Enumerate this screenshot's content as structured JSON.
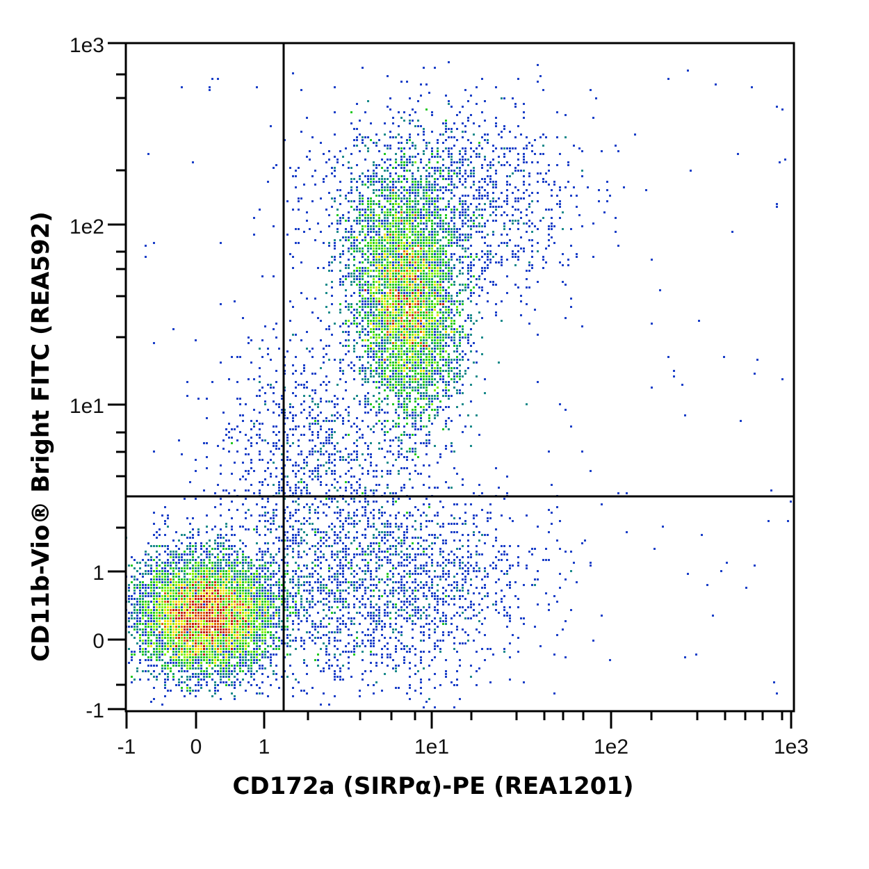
{
  "chart_data": {
    "type": "scatter",
    "subtype": "flow-cytometry-density-dot-plot",
    "title": "",
    "xlabel": "CD172a (SIRPα)-PE (REA1201)",
    "ylabel": "CD11b-Vio® Bright FITC (REA592)",
    "x_scale": "biexponential",
    "y_scale": "biexponential",
    "xlim": [
      -1,
      1000
    ],
    "ylim": [
      -1,
      1000
    ],
    "x_ticks": [
      "-1",
      "0",
      "1",
      "1e1",
      "1e2",
      "1e3"
    ],
    "y_ticks": [
      "-1",
      "0",
      "1",
      "1e1",
      "1e2",
      "1e3"
    ],
    "grid": false,
    "legend": null,
    "quadrant_gates": {
      "x_threshold": 1.3,
      "y_threshold": 2.8
    },
    "populations": [
      {
        "name": "double-negative cluster",
        "center_x": 0.3,
        "center_y": 0.3,
        "quadrant": "lower-left",
        "density": "high"
      },
      {
        "name": "CD11b+ CD172a+ cluster",
        "center_x": 7,
        "center_y": 30,
        "quadrant": "upper-right",
        "density": "high"
      },
      {
        "name": "CD172a+ CD11b- scatter",
        "center_x": 8,
        "center_y": 0.8,
        "quadrant": "lower-right",
        "density": "low"
      }
    ],
    "color_scale": [
      "#1a3fc8",
      "#1a8a8a",
      "#22c822",
      "#7ef000",
      "#f0e000",
      "#e06000",
      "#c02000"
    ]
  },
  "axes": {
    "x": {
      "title": "CD172a (SIRPα)-PE (REA1201)",
      "ticks": [
        "-1",
        "0",
        "1",
        "1e1",
        "1e2",
        "1e3"
      ]
    },
    "y": {
      "title": "CD11b-Vio® Bright FITC (REA592)",
      "ticks": [
        "-1",
        "0",
        "1",
        "1e1",
        "1e2",
        "1e3"
      ]
    }
  }
}
